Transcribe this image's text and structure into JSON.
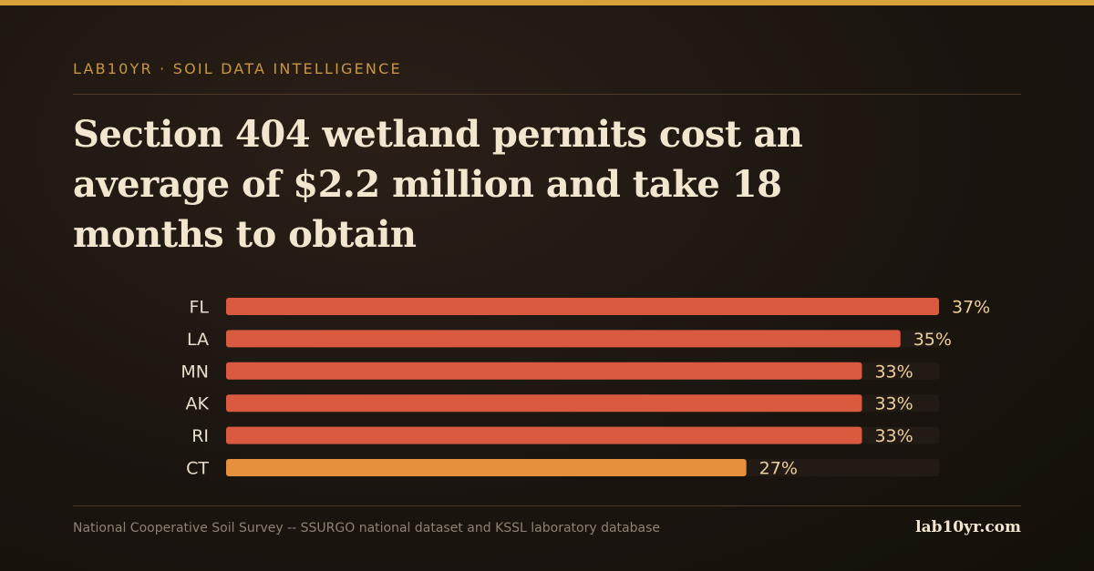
{
  "brand": {
    "eyebrow": "LAB10YR · SOIL DATA INTELLIGENCE",
    "site": "lab10yr.com"
  },
  "headline": "Section 404 wetland permits cost an average of $2.2 million and take 18 months to obtain",
  "footer": {
    "source": "National Cooperative Soil Survey -- SSURGO national dataset and KSSL laboratory database"
  },
  "colors": {
    "accent": "#d9a13a",
    "bar_primary": "#d95a3e",
    "bar_secondary": "#e6903c",
    "track": "#221b15",
    "value_label": "#efcf9a",
    "category_label": "#e8ddcb"
  },
  "chart_data": {
    "type": "bar",
    "orientation": "horizontal",
    "categories": [
      "FL",
      "LA",
      "MN",
      "AK",
      "RI",
      "CT"
    ],
    "values": [
      37,
      35,
      33,
      33,
      33,
      27
    ],
    "value_labels": [
      "37%",
      "35%",
      "33%",
      "33%",
      "33%",
      "27%"
    ],
    "bar_colors": [
      "#d95a3e",
      "#d95a3e",
      "#d95a3e",
      "#d95a3e",
      "#d95a3e",
      "#e6903c"
    ],
    "xlim": [
      0,
      37
    ],
    "grid": false,
    "legend": "none"
  }
}
